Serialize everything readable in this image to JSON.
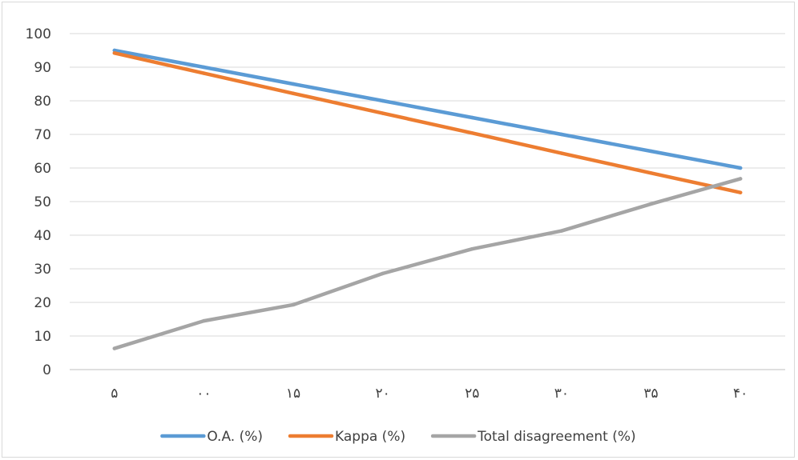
{
  "chart_data": {
    "type": "line",
    "categories": [
      "۵",
      "۰۰",
      "۱۵",
      "۲۰",
      "۲۵",
      "۳۰",
      "۳۵",
      "۴۰"
    ],
    "ylim": [
      0,
      100
    ],
    "yticks": [
      0,
      10,
      20,
      30,
      40,
      50,
      60,
      70,
      80,
      90,
      100
    ],
    "grid": true,
    "legend_position": "bottom",
    "series": [
      {
        "name": "O.A. (%)",
        "color": "#5b9bd5",
        "values": [
          95,
          90,
          85,
          80,
          75,
          70,
          65,
          60
        ]
      },
      {
        "name": "Kappa (%)",
        "color": "#ed7d31",
        "values": [
          94.2,
          88.2,
          82.2,
          76.3,
          70.4,
          64.4,
          58.5,
          52.7
        ]
      },
      {
        "name": "Total disagreement (%)",
        "color": "#a5a5a5",
        "values": [
          6.3,
          14.5,
          19.3,
          28.6,
          35.9,
          41.3,
          49.3,
          56.8
        ]
      }
    ]
  }
}
